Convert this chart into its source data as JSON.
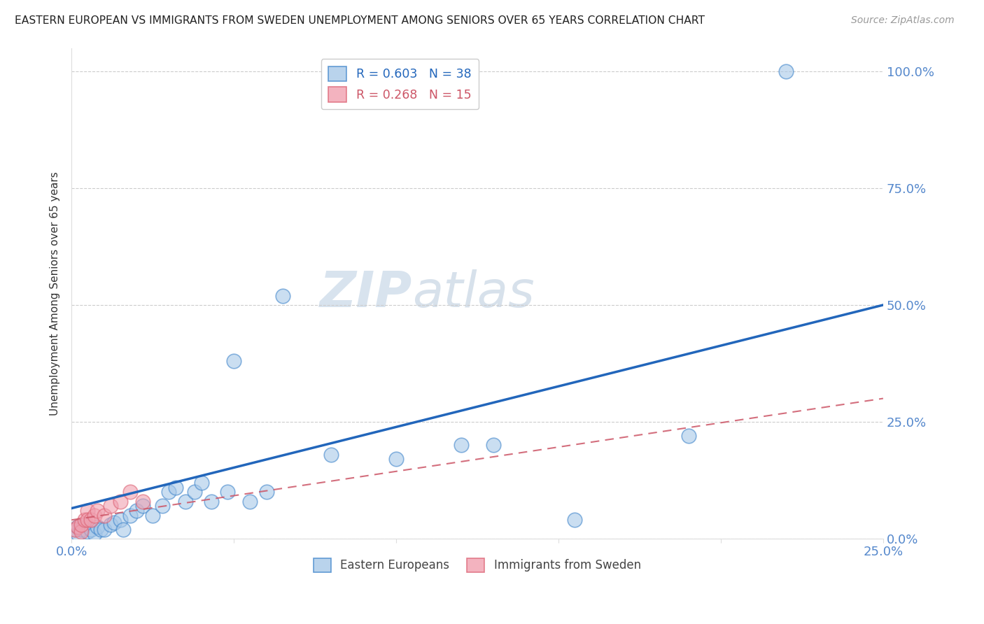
{
  "title": "EASTERN EUROPEAN VS IMMIGRANTS FROM SWEDEN UNEMPLOYMENT AMONG SENIORS OVER 65 YEARS CORRELATION CHART",
  "source": "Source: ZipAtlas.com",
  "ylabel": "Unemployment Among Seniors over 65 years",
  "xlim": [
    0.0,
    0.25
  ],
  "ylim": [
    0.0,
    1.05
  ],
  "x_ticks": [
    0.0,
    0.05,
    0.1,
    0.15,
    0.2,
    0.25
  ],
  "x_tick_labels": [
    "0.0%",
    "",
    "",
    "",
    "",
    "25.0%"
  ],
  "y_ticks": [
    0.0,
    0.25,
    0.5,
    0.75,
    1.0
  ],
  "y_tick_labels": [
    "0.0%",
    "25.0%",
    "50.0%",
    "75.0%",
    "100.0%"
  ],
  "blue_fill": "#A8C8E8",
  "blue_edge": "#4488CC",
  "pink_fill": "#F0A0B0",
  "pink_edge": "#DD6677",
  "line_blue_color": "#2266BB",
  "line_pink_color": "#CC5566",
  "tick_label_color": "#5588CC",
  "ylabel_color": "#333333",
  "blue_x": [
    0.001,
    0.002,
    0.002,
    0.003,
    0.004,
    0.005,
    0.006,
    0.007,
    0.008,
    0.009,
    0.01,
    0.012,
    0.013,
    0.015,
    0.016,
    0.018,
    0.02,
    0.022,
    0.025,
    0.028,
    0.03,
    0.032,
    0.035,
    0.038,
    0.04,
    0.043,
    0.048,
    0.05,
    0.055,
    0.06,
    0.065,
    0.08,
    0.1,
    0.12,
    0.13,
    0.155,
    0.19,
    0.22
  ],
  "blue_y": [
    0.02,
    0.01,
    0.025,
    0.02,
    0.03,
    0.015,
    0.02,
    0.01,
    0.025,
    0.02,
    0.02,
    0.03,
    0.035,
    0.04,
    0.02,
    0.05,
    0.06,
    0.07,
    0.05,
    0.07,
    0.1,
    0.11,
    0.08,
    0.1,
    0.12,
    0.08,
    0.1,
    0.38,
    0.08,
    0.1,
    0.52,
    0.18,
    0.17,
    0.2,
    0.2,
    0.04,
    0.22,
    1.0
  ],
  "pink_x": [
    0.001,
    0.002,
    0.003,
    0.003,
    0.004,
    0.005,
    0.005,
    0.006,
    0.007,
    0.008,
    0.01,
    0.012,
    0.015,
    0.018,
    0.022
  ],
  "pink_y": [
    0.02,
    0.025,
    0.015,
    0.03,
    0.04,
    0.06,
    0.04,
    0.04,
    0.05,
    0.06,
    0.05,
    0.07,
    0.08,
    0.1,
    0.08
  ],
  "blue_line_x0": 0.0,
  "blue_line_y0": 0.065,
  "blue_line_x1": 0.25,
  "blue_line_y1": 0.5,
  "pink_line_x0": 0.0,
  "pink_line_y0": 0.04,
  "pink_line_x1": 0.25,
  "pink_line_y1": 0.3,
  "watermark_zip": "ZIP",
  "watermark_atlas": "atlas",
  "legend1_label": "R = 0.603   N = 38",
  "legend2_label": "R = 0.268   N = 15",
  "bottom_label1": "Eastern Europeans",
  "bottom_label2": "Immigrants from Sweden"
}
